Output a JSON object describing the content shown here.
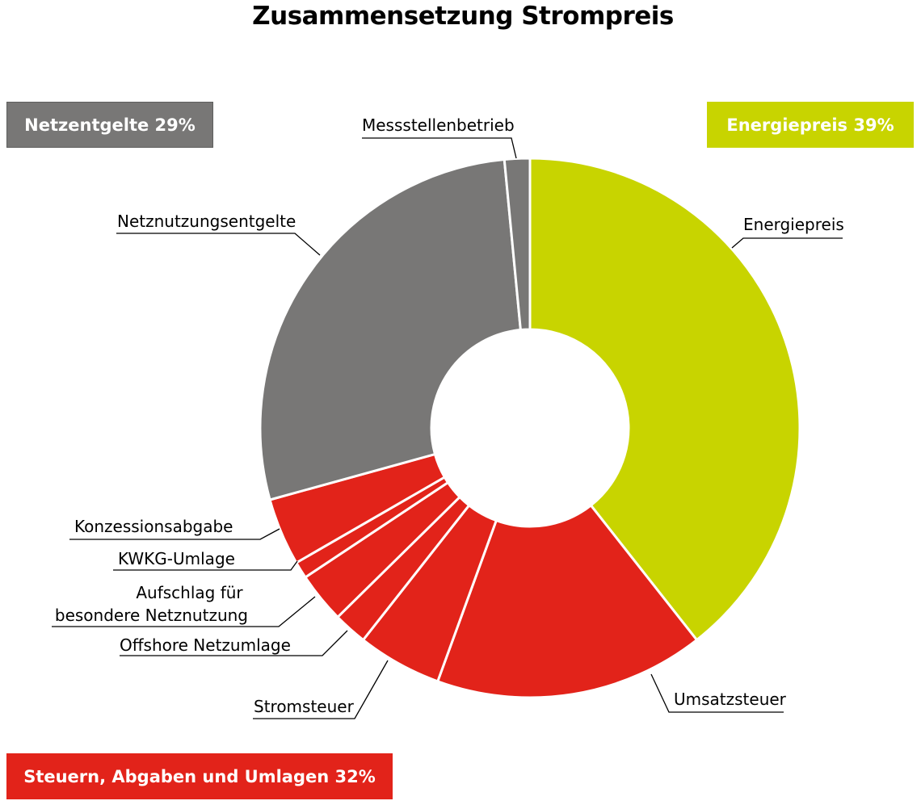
{
  "chart_data": {
    "type": "pie",
    "title": "Zusammensetzung Strompreis",
    "groups": [
      {
        "label": "Netzentgelte 29%",
        "color": "#787776"
      },
      {
        "label": "Energiepreis 39%",
        "color": "#c8d400"
      },
      {
        "label": "Steuern, Abgaben und Umlagen 32%",
        "color": "#e2231a"
      }
    ],
    "slices": [
      {
        "label": "Energiepreis",
        "value": 39.0,
        "color": "#c8d400"
      },
      {
        "label": "Umsatzsteuer",
        "value": 16.0,
        "color": "#e2231a"
      },
      {
        "label": "Stromsteuer",
        "value": 5.0,
        "color": "#e2231a"
      },
      {
        "label": "Offshore Netzumlage",
        "value": 2.0,
        "color": "#e2231a"
      },
      {
        "label": "Aufschlag für besondere Netznutzung",
        "value": 3.0,
        "color": "#e2231a"
      },
      {
        "label": "KWKG-Umlage",
        "value": 1.0,
        "color": "#e2231a"
      },
      {
        "label": "Konzessionsabgabe",
        "value": 4.0,
        "color": "#e2231a"
      },
      {
        "label": "Netznutzungsentgelte",
        "value": 27.5,
        "color": "#787776"
      },
      {
        "label": "Messstellenbetrieb",
        "value": 1.5,
        "color": "#787776"
      }
    ]
  }
}
